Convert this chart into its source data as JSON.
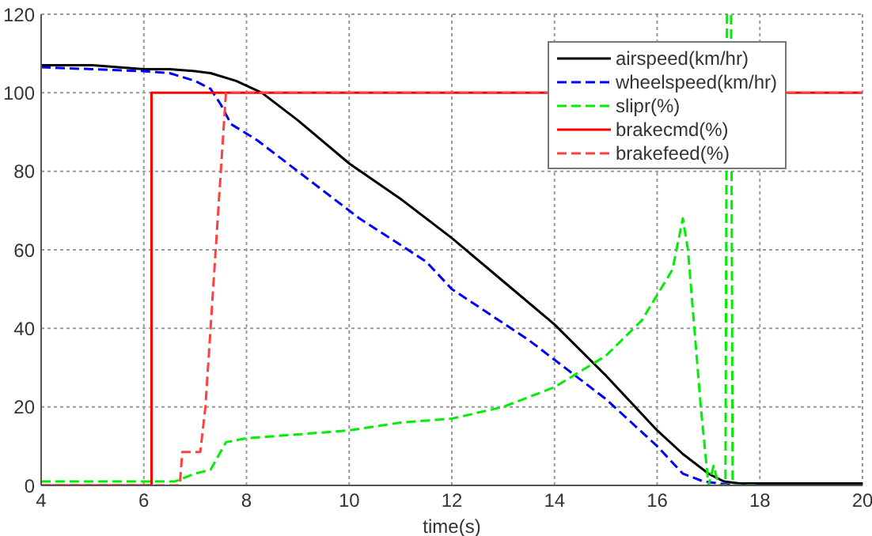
{
  "chart_data": {
    "type": "line",
    "xlabel": "time(s)",
    "xlim": [
      4,
      20
    ],
    "xticks": [
      4,
      6,
      8,
      10,
      12,
      14,
      16,
      18,
      20
    ],
    "ylim": [
      0,
      120
    ],
    "yticks": [
      0,
      20,
      40,
      60,
      80,
      100,
      120
    ],
    "grid": true,
    "legend": "top right",
    "marker": "none",
    "series": [
      {
        "name": "airspeed(km/hr)",
        "color": "#000000",
        "line_style": "solid",
        "x": [
          4,
          5,
          6,
          6.5,
          7,
          7.3,
          7.8,
          8.3,
          9,
          10,
          11,
          12,
          13,
          14,
          15,
          16,
          16.5,
          17,
          17.3,
          17.6,
          18,
          19,
          20
        ],
        "values": [
          107,
          107,
          106,
          106,
          105.5,
          105,
          103,
          100,
          93,
          82,
          73,
          63,
          52,
          41,
          28,
          14,
          8,
          3,
          1,
          0.5,
          0.5,
          0.5,
          0.5
        ]
      },
      {
        "name": "wheelspeed(km/hr)",
        "color": "#0000ff",
        "line_style": "dashed",
        "x": [
          4,
          5,
          6,
          6.5,
          7,
          7.3,
          7.5,
          7.7,
          8.2,
          9,
          10.2,
          11.5,
          12,
          13.5,
          15,
          16,
          16.5,
          16.9,
          17.5,
          18
        ],
        "values": [
          106.5,
          106,
          105.5,
          105,
          103,
          101,
          97,
          92,
          88,
          80,
          68,
          57,
          50,
          37,
          22,
          10,
          3,
          1,
          0,
          0
        ]
      },
      {
        "name": "slipr(%)",
        "color": "#00ee00",
        "line_style": "dashed",
        "x": [
          4,
          5,
          6,
          6.6,
          7,
          7.3,
          7.6,
          8,
          9,
          10,
          11,
          12,
          13,
          14,
          15,
          15.7,
          16.3,
          16.5,
          16.6,
          16.85,
          17,
          17.1,
          17.2,
          17.33,
          17.36,
          17.44,
          17.47,
          18
        ],
        "values": [
          1,
          1,
          1,
          1,
          3,
          4,
          11,
          12,
          13,
          14,
          16,
          17,
          20,
          25,
          33,
          42,
          55,
          68,
          60,
          20,
          0,
          5,
          0,
          0,
          120,
          120,
          0,
          0
        ]
      },
      {
        "name": "brakecmd(%)",
        "color": "#ff0000",
        "line_style": "solid",
        "x": [
          4,
          6.15,
          6.15,
          20
        ],
        "values": [
          0,
          0,
          100,
          100
        ]
      },
      {
        "name": "brakefeed(%)",
        "color": "#ff4040",
        "line_style": "dashed",
        "x": [
          4,
          6.7,
          6.75,
          7.1,
          7.2,
          7.4,
          7.6,
          8,
          12,
          13.5,
          20
        ],
        "values": [
          0,
          0,
          8.5,
          8.5,
          20,
          60,
          100,
          100,
          100,
          100,
          100
        ]
      }
    ]
  }
}
